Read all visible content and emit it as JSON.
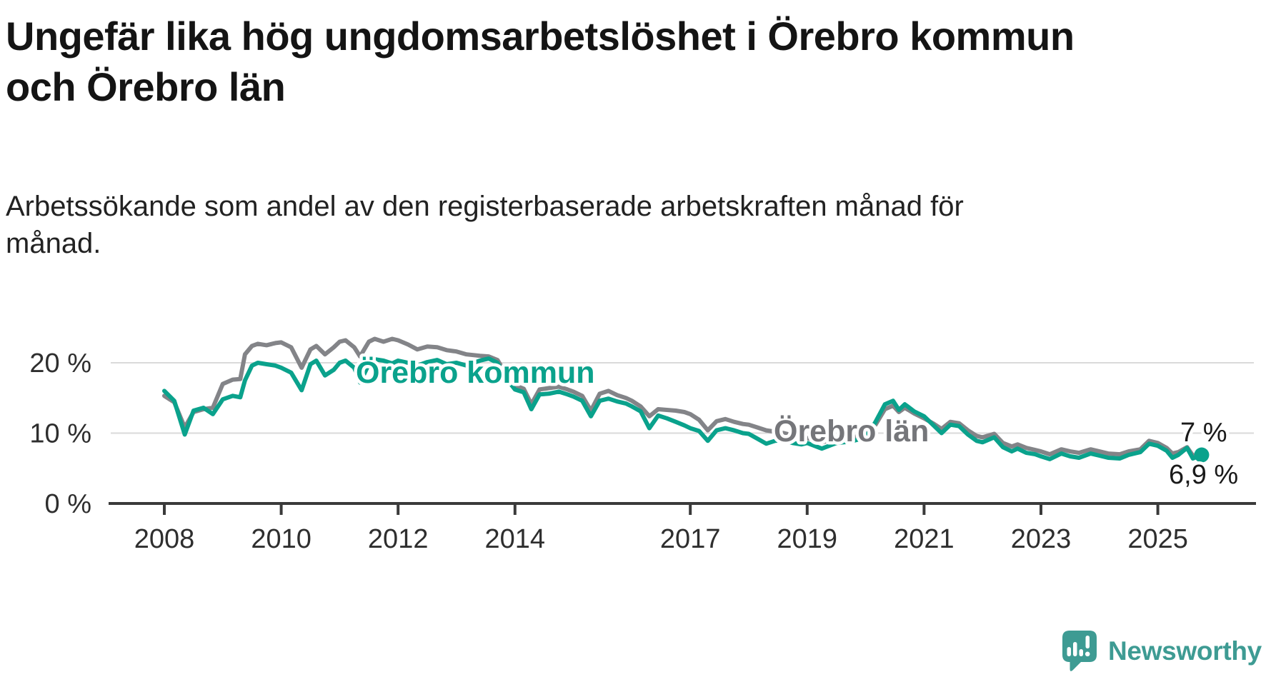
{
  "header": {
    "title": "Ungefär lika hög ungdomsarbetslöshet i Örebro kommun\noch Örebro län",
    "subtitle": "Arbetssökande som andel av den registerbaserade arbetskraften månad för\nmånad."
  },
  "chart_data": {
    "type": "line",
    "unit": "%",
    "grid": "horizontal",
    "x_axis": {
      "ticks": [
        2008,
        2010,
        2012,
        2014,
        2017,
        2019,
        2021,
        2023,
        2025
      ],
      "range": [
        2007.6,
        2026.6
      ]
    },
    "y_axis": {
      "ticks": [
        0,
        10,
        20
      ],
      "tick_labels": [
        "0 %",
        "10 %",
        "20 %"
      ],
      "range": [
        0,
        24.5
      ]
    },
    "colors": {
      "kommun": "#0aa28c",
      "lan": "#838488",
      "kommun_label": "#0aa28c",
      "lan_label": "#75767a",
      "grid": "#dadada",
      "axis": "#3a3a3a",
      "annotation": "#1a1a1a"
    },
    "series": [
      {
        "name": "Örebro län",
        "end_label": "7 %",
        "end_value": 7.0,
        "points": [
          [
            2008.0,
            15.3
          ],
          [
            2008.17,
            14.4
          ],
          [
            2008.35,
            10.8
          ],
          [
            2008.5,
            13.0
          ],
          [
            2008.67,
            13.4
          ],
          [
            2008.83,
            13.6
          ],
          [
            2009.0,
            17.0
          ],
          [
            2009.17,
            17.6
          ],
          [
            2009.3,
            17.7
          ],
          [
            2009.38,
            21.2
          ],
          [
            2009.5,
            22.4
          ],
          [
            2009.6,
            22.7
          ],
          [
            2009.75,
            22.5
          ],
          [
            2009.9,
            22.8
          ],
          [
            2010.0,
            22.9
          ],
          [
            2010.17,
            22.2
          ],
          [
            2010.35,
            19.3
          ],
          [
            2010.5,
            21.9
          ],
          [
            2010.6,
            22.4
          ],
          [
            2010.75,
            21.2
          ],
          [
            2010.9,
            22.2
          ],
          [
            2011.0,
            23.0
          ],
          [
            2011.1,
            23.2
          ],
          [
            2011.25,
            22.2
          ],
          [
            2011.35,
            20.9
          ],
          [
            2011.5,
            23.0
          ],
          [
            2011.6,
            23.4
          ],
          [
            2011.75,
            23.0
          ],
          [
            2011.9,
            23.4
          ],
          [
            2012.0,
            23.2
          ],
          [
            2012.17,
            22.6
          ],
          [
            2012.33,
            21.9
          ],
          [
            2012.5,
            22.3
          ],
          [
            2012.67,
            22.2
          ],
          [
            2012.83,
            21.8
          ],
          [
            2013.0,
            21.6
          ],
          [
            2013.17,
            21.2
          ],
          [
            2013.4,
            21.0
          ],
          [
            2013.55,
            20.9
          ],
          [
            2013.7,
            20.4
          ],
          [
            2013.85,
            18.4
          ],
          [
            2014.0,
            16.8
          ],
          [
            2014.15,
            16.3
          ],
          [
            2014.28,
            14.1
          ],
          [
            2014.42,
            16.2
          ],
          [
            2014.58,
            16.4
          ],
          [
            2014.75,
            16.6
          ],
          [
            2014.9,
            16.2
          ],
          [
            2015.0,
            15.9
          ],
          [
            2015.15,
            15.3
          ],
          [
            2015.3,
            13.2
          ],
          [
            2015.45,
            15.6
          ],
          [
            2015.6,
            16.0
          ],
          [
            2015.75,
            15.4
          ],
          [
            2015.9,
            15.0
          ],
          [
            2016.0,
            14.6
          ],
          [
            2016.15,
            13.8
          ],
          [
            2016.3,
            12.4
          ],
          [
            2016.45,
            13.4
          ],
          [
            2016.6,
            13.3
          ],
          [
            2016.75,
            13.2
          ],
          [
            2016.9,
            13.0
          ],
          [
            2017.0,
            12.7
          ],
          [
            2017.15,
            11.9
          ],
          [
            2017.3,
            10.4
          ],
          [
            2017.45,
            11.7
          ],
          [
            2017.6,
            12.0
          ],
          [
            2017.75,
            11.6
          ],
          [
            2017.9,
            11.3
          ],
          [
            2018.0,
            11.2
          ],
          [
            2018.15,
            10.8
          ],
          [
            2018.3,
            10.4
          ],
          [
            2018.45,
            10.2
          ],
          [
            2018.6,
            10.0
          ],
          [
            2018.75,
            9.7
          ],
          [
            2018.9,
            9.4
          ],
          [
            2019.0,
            9.3
          ],
          [
            2019.25,
            8.7
          ],
          [
            2019.5,
            9.2
          ],
          [
            2019.75,
            9.4
          ],
          [
            2020.0,
            9.7
          ],
          [
            2020.17,
            11.2
          ],
          [
            2020.33,
            13.4
          ],
          [
            2020.47,
            13.9
          ],
          [
            2020.57,
            13.0
          ],
          [
            2020.67,
            13.6
          ],
          [
            2020.83,
            12.8
          ],
          [
            2021.0,
            12.1
          ],
          [
            2021.15,
            11.4
          ],
          [
            2021.3,
            10.6
          ],
          [
            2021.45,
            11.6
          ],
          [
            2021.6,
            11.4
          ],
          [
            2021.75,
            10.4
          ],
          [
            2021.9,
            9.6
          ],
          [
            2022.0,
            9.4
          ],
          [
            2022.2,
            9.9
          ],
          [
            2022.35,
            8.6
          ],
          [
            2022.5,
            8.1
          ],
          [
            2022.6,
            8.4
          ],
          [
            2022.75,
            7.9
          ],
          [
            2022.9,
            7.6
          ],
          [
            2023.0,
            7.4
          ],
          [
            2023.15,
            7.0
          ],
          [
            2023.35,
            7.7
          ],
          [
            2023.5,
            7.4
          ],
          [
            2023.65,
            7.2
          ],
          [
            2023.85,
            7.7
          ],
          [
            2024.0,
            7.4
          ],
          [
            2024.15,
            7.1
          ],
          [
            2024.35,
            7.0
          ],
          [
            2024.5,
            7.4
          ],
          [
            2024.7,
            7.7
          ],
          [
            2024.85,
            8.9
          ],
          [
            2025.0,
            8.6
          ],
          [
            2025.15,
            7.9
          ],
          [
            2025.25,
            7.1
          ],
          [
            2025.35,
            7.3
          ],
          [
            2025.5,
            8.0
          ],
          [
            2025.6,
            6.8
          ],
          [
            2025.75,
            7.0
          ]
        ]
      },
      {
        "name": "Örebro kommun",
        "end_label": "6,9 %",
        "end_value": 6.9,
        "points": [
          [
            2008.0,
            16.0
          ],
          [
            2008.17,
            14.6
          ],
          [
            2008.35,
            9.8
          ],
          [
            2008.5,
            13.2
          ],
          [
            2008.67,
            13.6
          ],
          [
            2008.83,
            12.7
          ],
          [
            2009.0,
            14.8
          ],
          [
            2009.17,
            15.3
          ],
          [
            2009.3,
            15.1
          ],
          [
            2009.38,
            17.5
          ],
          [
            2009.5,
            19.6
          ],
          [
            2009.6,
            20.0
          ],
          [
            2009.75,
            19.8
          ],
          [
            2009.9,
            19.6
          ],
          [
            2010.0,
            19.3
          ],
          [
            2010.17,
            18.6
          ],
          [
            2010.35,
            16.1
          ],
          [
            2010.5,
            19.8
          ],
          [
            2010.6,
            20.3
          ],
          [
            2010.75,
            18.2
          ],
          [
            2010.9,
            19.0
          ],
          [
            2011.0,
            20.0
          ],
          [
            2011.1,
            20.3
          ],
          [
            2011.25,
            19.3
          ],
          [
            2011.35,
            17.2
          ],
          [
            2011.5,
            19.8
          ],
          [
            2011.6,
            20.5
          ],
          [
            2011.75,
            20.3
          ],
          [
            2011.9,
            19.9
          ],
          [
            2012.0,
            20.3
          ],
          [
            2012.17,
            20.0
          ],
          [
            2012.33,
            19.6
          ],
          [
            2012.5,
            20.1
          ],
          [
            2012.67,
            20.4
          ],
          [
            2012.83,
            19.8
          ],
          [
            2013.0,
            20.0
          ],
          [
            2013.17,
            19.6
          ],
          [
            2013.4,
            20.3
          ],
          [
            2013.55,
            20.6
          ],
          [
            2013.7,
            20.0
          ],
          [
            2013.85,
            17.8
          ],
          [
            2014.0,
            16.2
          ],
          [
            2014.15,
            15.8
          ],
          [
            2014.28,
            13.4
          ],
          [
            2014.42,
            15.5
          ],
          [
            2014.58,
            15.6
          ],
          [
            2014.75,
            15.9
          ],
          [
            2014.9,
            15.5
          ],
          [
            2015.0,
            15.2
          ],
          [
            2015.15,
            14.6
          ],
          [
            2015.3,
            12.4
          ],
          [
            2015.45,
            14.6
          ],
          [
            2015.6,
            14.9
          ],
          [
            2015.75,
            14.5
          ],
          [
            2015.9,
            14.2
          ],
          [
            2016.0,
            13.8
          ],
          [
            2016.15,
            13.1
          ],
          [
            2016.3,
            10.7
          ],
          [
            2016.45,
            12.5
          ],
          [
            2016.6,
            12.1
          ],
          [
            2016.75,
            11.6
          ],
          [
            2016.9,
            11.1
          ],
          [
            2017.0,
            10.7
          ],
          [
            2017.15,
            10.3
          ],
          [
            2017.3,
            8.9
          ],
          [
            2017.45,
            10.4
          ],
          [
            2017.6,
            10.7
          ],
          [
            2017.75,
            10.4
          ],
          [
            2017.9,
            10.0
          ],
          [
            2018.0,
            9.9
          ],
          [
            2018.15,
            9.2
          ],
          [
            2018.3,
            8.5
          ],
          [
            2018.45,
            8.9
          ],
          [
            2018.6,
            9.0
          ],
          [
            2018.75,
            8.6
          ],
          [
            2018.9,
            8.4
          ],
          [
            2019.0,
            8.6
          ],
          [
            2019.25,
            7.8
          ],
          [
            2019.5,
            8.6
          ],
          [
            2019.75,
            8.8
          ],
          [
            2020.0,
            9.4
          ],
          [
            2020.17,
            11.6
          ],
          [
            2020.33,
            14.1
          ],
          [
            2020.47,
            14.6
          ],
          [
            2020.57,
            13.3
          ],
          [
            2020.67,
            14.1
          ],
          [
            2020.83,
            13.1
          ],
          [
            2021.0,
            12.4
          ],
          [
            2021.15,
            11.2
          ],
          [
            2021.3,
            10.0
          ],
          [
            2021.45,
            11.2
          ],
          [
            2021.6,
            11.0
          ],
          [
            2021.75,
            9.8
          ],
          [
            2021.9,
            8.9
          ],
          [
            2022.0,
            8.7
          ],
          [
            2022.2,
            9.4
          ],
          [
            2022.35,
            8.0
          ],
          [
            2022.5,
            7.4
          ],
          [
            2022.6,
            7.8
          ],
          [
            2022.75,
            7.2
          ],
          [
            2022.9,
            7.0
          ],
          [
            2023.0,
            6.7
          ],
          [
            2023.15,
            6.3
          ],
          [
            2023.35,
            7.1
          ],
          [
            2023.5,
            6.7
          ],
          [
            2023.65,
            6.5
          ],
          [
            2023.85,
            7.1
          ],
          [
            2024.0,
            6.8
          ],
          [
            2024.15,
            6.5
          ],
          [
            2024.35,
            6.4
          ],
          [
            2024.5,
            6.9
          ],
          [
            2024.7,
            7.3
          ],
          [
            2024.85,
            8.5
          ],
          [
            2025.0,
            8.2
          ],
          [
            2025.15,
            7.5
          ],
          [
            2025.25,
            6.5
          ],
          [
            2025.35,
            6.9
          ],
          [
            2025.5,
            7.9
          ],
          [
            2025.6,
            6.4
          ],
          [
            2025.75,
            6.9
          ]
        ]
      }
    ]
  },
  "branding": {
    "name": "Newsworthy",
    "logo_color": "#3e9b93",
    "logo_icon": "bar-chart-exclamation-bubble"
  }
}
